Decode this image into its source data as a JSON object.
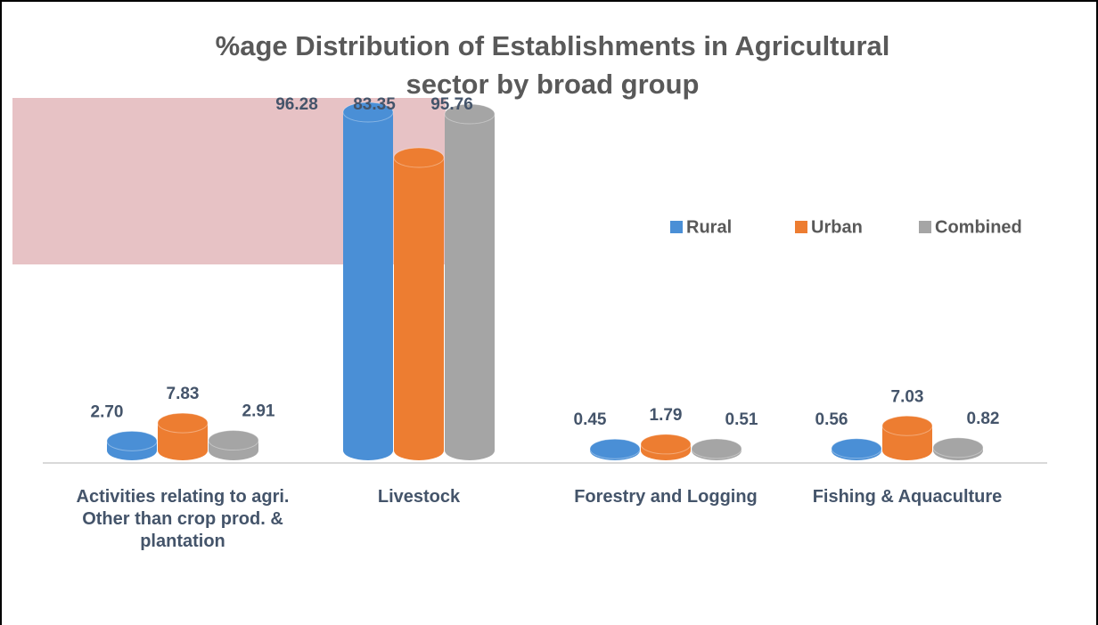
{
  "chart_data": {
    "type": "bar3d",
    "title": "%age Distribution of  Establishments in  Agricultural sector by broad group",
    "categories": [
      "Activities relating to agri. Other than crop prod. & plantation",
      "Livestock",
      "Forestry and Logging",
      "Fishing & Aquaculture"
    ],
    "series": [
      {
        "name": "Rural",
        "color": "#4a8fd6",
        "values": [
          2.7,
          96.28,
          0.45,
          0.56
        ],
        "value_labels": [
          "2.70",
          "96.28",
          "0.45",
          "0.56"
        ]
      },
      {
        "name": "Urban",
        "color": "#ed7d31",
        "values": [
          7.83,
          83.35,
          1.79,
          7.03
        ],
        "value_labels": [
          "7.83",
          "83.35",
          "1.79",
          "7.03"
        ]
      },
      {
        "name": "Combined",
        "color": "#a5a5a5",
        "values": [
          2.91,
          95.76,
          0.51,
          0.82
        ],
        "value_labels": [
          "2.91",
          "95.76",
          "0.51",
          "0.82"
        ]
      }
    ],
    "legend": "right"
  }
}
